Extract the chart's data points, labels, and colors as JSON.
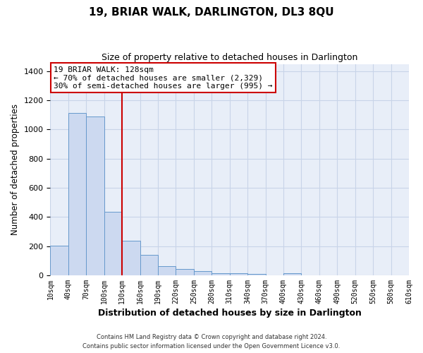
{
  "title": "19, BRIAR WALK, DARLINGTON, DL3 8QU",
  "subtitle": "Size of property relative to detached houses in Darlington",
  "xlabel": "Distribution of detached houses by size in Darlington",
  "ylabel": "Number of detached properties",
  "bar_values": [
    205,
    1115,
    1090,
    435,
    238,
    142,
    62,
    45,
    28,
    15,
    12,
    10,
    0,
    14,
    0,
    0,
    0,
    0,
    0,
    0
  ],
  "bar_labels": [
    "10sqm",
    "40sqm",
    "70sqm",
    "100sqm",
    "130sqm",
    "160sqm",
    "190sqm",
    "220sqm",
    "250sqm",
    "280sqm",
    "310sqm",
    "340sqm",
    "370sqm",
    "400sqm",
    "430sqm",
    "460sqm",
    "490sqm",
    "520sqm",
    "550sqm",
    "580sqm",
    "610sqm"
  ],
  "bar_color": "#ccd9f0",
  "bar_edge_color": "#6699cc",
  "vline_x": 4.0,
  "vline_color": "#cc0000",
  "ylim": [
    0,
    1450
  ],
  "yticks": [
    0,
    200,
    400,
    600,
    800,
    1000,
    1200,
    1400
  ],
  "annotation_title": "19 BRIAR WALK: 128sqm",
  "annotation_line1": "← 70% of detached houses are smaller (2,329)",
  "annotation_line2": "30% of semi-detached houses are larger (995) →",
  "annotation_box_color": "#ffffff",
  "annotation_box_edge": "#cc0000",
  "grid_color": "#c8d4e8",
  "background_color": "#e8eef8",
  "footer1": "Contains HM Land Registry data © Crown copyright and database right 2024.",
  "footer2": "Contains public sector information licensed under the Open Government Licence v3.0."
}
